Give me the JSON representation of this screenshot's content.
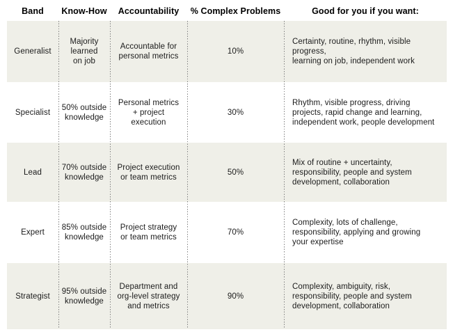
{
  "table": {
    "headers": [
      "Band",
      "Know-How",
      "Accountability",
      "% Complex Problems",
      "Good for you if you want:"
    ],
    "rows": [
      {
        "band": "Generalist",
        "know_how": "Majority\nlearned\non job",
        "accountability": "Accountable for\npersonal metrics",
        "complex_problems": "10%",
        "good_for": "Certainty, routine, rhythm, visible progress,\nlearning on job, independent work"
      },
      {
        "band": "Specialist",
        "know_how": "50% outside\nknowledge",
        "accountability": "Personal metrics\n+ project\nexecution",
        "complex_problems": "30%",
        "good_for": "Rhythm, visible progress, driving\nprojects, rapid change and learning,\nindependent work, people development"
      },
      {
        "band": "Lead",
        "know_how": "70% outside\nknowledge",
        "accountability": "Project execution\nor team metrics",
        "complex_problems": "50%",
        "good_for": "Mix of routine + uncertainty,\nresponsibility, people and system\ndevelopment, collaboration"
      },
      {
        "band": "Expert",
        "know_how": "85% outside\nknowledge",
        "accountability": "Project strategy\nor team metrics",
        "complex_problems": "70%",
        "good_for": "Complexity, lots of challenge,\nresponsibility, applying and growing\nyour expertise"
      },
      {
        "band": "Strategist",
        "know_how": "95% outside\nknowledge",
        "accountability": "Department and\norg-level strategy\nand metrics",
        "complex_problems": "90%",
        "good_for": "Complexity, ambiguity, risk,\nresponsibility, people and system\ndevelopment, collaboration"
      }
    ],
    "colors": {
      "row_shade": "#efefe8",
      "divider_dots": "#7d7d7d",
      "header_text": "#000000",
      "body_text": "#1b1b1b"
    }
  }
}
